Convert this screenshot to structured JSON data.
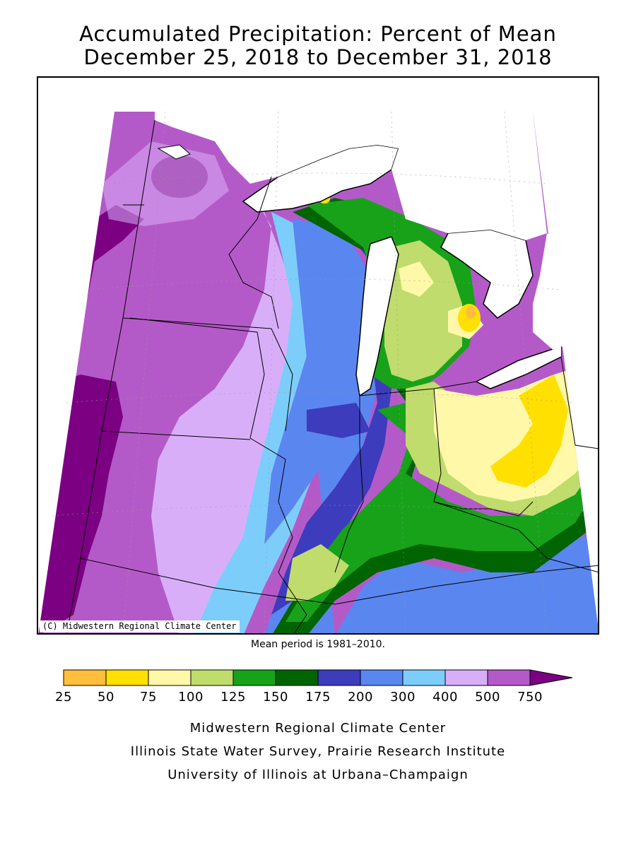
{
  "title": {
    "line1": "Accumulated Precipitation: Percent of Mean",
    "line2": "December 25, 2018 to December 31, 2018"
  },
  "map": {
    "copyright": "(C) Midwestern Regional Climate Center",
    "mean_period": "Mean period is 1981–2010."
  },
  "legend": {
    "labels": [
      "25",
      "50",
      "75",
      "100",
      "125",
      "150",
      "175",
      "200",
      "300",
      "400",
      "500",
      "750"
    ],
    "colors": [
      "#ffbf3c",
      "#ffe000",
      "#fff8a8",
      "#bfdc6c",
      "#17a21a",
      "#006400",
      "#3c3cbc",
      "#5a86f0",
      "#7dcdfa",
      "#d9aef9",
      "#b45ac8",
      "#7b0082"
    ]
  },
  "credits": {
    "line1": "Midwestern Regional Climate Center",
    "line2": "Illinois State Water Survey, Prairie Research Institute",
    "line3": "University of Illinois at Urbana–Champaign"
  }
}
